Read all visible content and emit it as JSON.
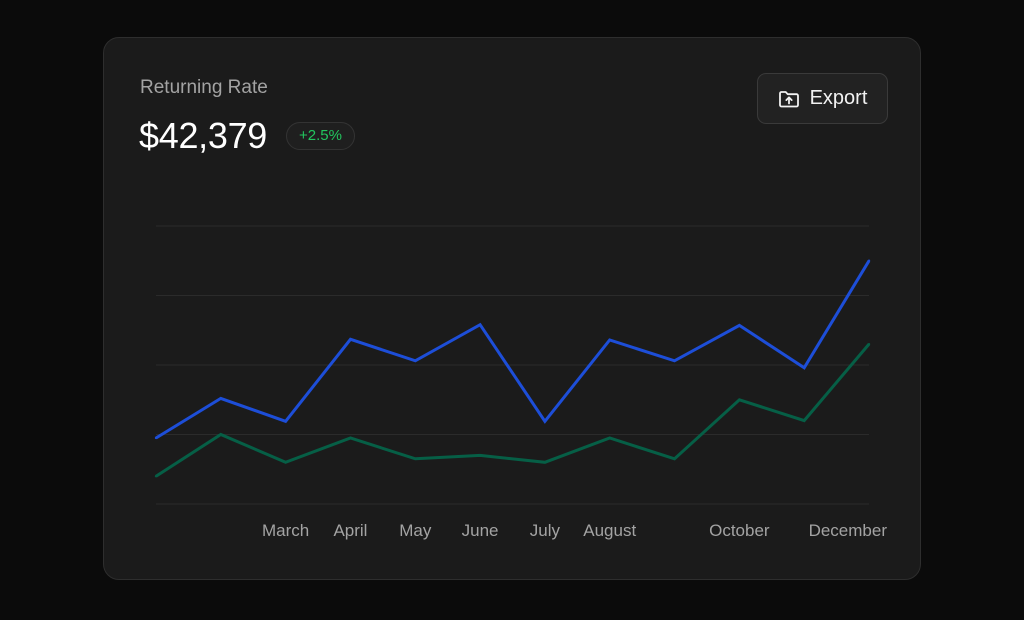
{
  "card": {
    "title": "Returning Rate",
    "amount": "$42,379",
    "change": "+2.5%"
  },
  "toolbar": {
    "export_label": "Export",
    "export_icon": "folder-upload-icon"
  },
  "colors": {
    "background": "#0b0b0b",
    "card": "#1b1b1b",
    "series_primary": "#1d4ed8",
    "series_secondary": "#065f46",
    "positive": "#22c55e"
  },
  "chart_data": {
    "type": "line",
    "categories": [
      "",
      "",
      "March",
      "April",
      "May",
      "June",
      "July",
      "August",
      "",
      "October",
      "",
      "December"
    ],
    "ylim": [
      0,
      4
    ],
    "grid": true,
    "legend": "none",
    "series": [
      {
        "color": "#1d4ed8",
        "values": [
          0.95,
          1.52,
          1.19,
          2.37,
          2.06,
          2.58,
          1.19,
          2.36,
          2.06,
          2.57,
          1.96,
          3.5
        ]
      },
      {
        "color": "#065f46",
        "values": [
          0.4,
          1.0,
          0.6,
          0.95,
          0.65,
          0.7,
          0.6,
          0.95,
          0.65,
          1.5,
          1.2,
          2.3
        ]
      }
    ]
  }
}
